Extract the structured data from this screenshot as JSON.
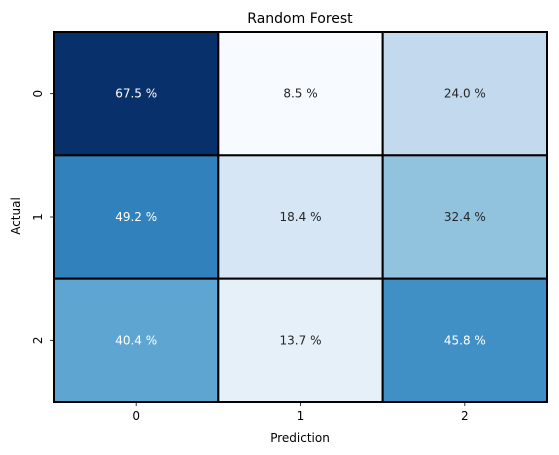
{
  "chart_data": {
    "type": "heatmap",
    "title": "Random Forest",
    "xlabel": "Prediction",
    "ylabel": "Actual",
    "x_categories": [
      "0",
      "1",
      "2"
    ],
    "y_categories": [
      "0",
      "1",
      "2"
    ],
    "values": [
      [
        67.5,
        8.5,
        24.0
      ],
      [
        49.2,
        18.4,
        32.4
      ],
      [
        40.4,
        13.7,
        45.8
      ]
    ],
    "value_labels": [
      [
        "67.5 %",
        "8.5 %",
        "24.0 %"
      ],
      [
        "49.2 %",
        "18.4 %",
        "32.4 %"
      ],
      [
        "40.4 %",
        "13.7 %",
        "45.8 %"
      ]
    ],
    "colormap": "Blues",
    "vmin": 8.5,
    "vmax": 67.5,
    "grid": true,
    "cell_border_color": "#000000",
    "colorbar": false
  }
}
